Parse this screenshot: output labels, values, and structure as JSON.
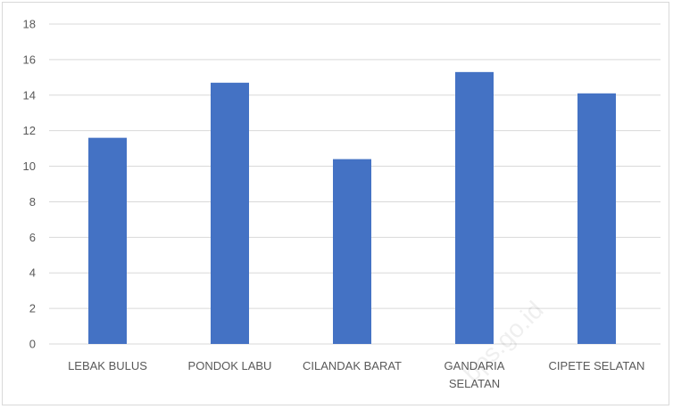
{
  "chart_data": {
    "type": "bar",
    "title": "",
    "xlabel": "",
    "ylabel": "",
    "categories": [
      [
        "LEBAK BULUS"
      ],
      [
        "PONDOK LABU"
      ],
      [
        "CILANDAK BARAT"
      ],
      [
        "GANDARIA",
        "SELATAN"
      ],
      [
        "CIPETE SELATAN"
      ]
    ],
    "values": [
      11.6,
      14.7,
      10.4,
      15.3,
      14.1
    ],
    "ylim": [
      0,
      18
    ],
    "yticks": [
      0,
      2,
      4,
      6,
      8,
      10,
      12,
      14,
      16,
      18
    ],
    "grid": true,
    "legend": "none",
    "bar_color": "#4472c4",
    "grid_color": "#d9d9d9"
  },
  "watermark": "bps.go.id"
}
